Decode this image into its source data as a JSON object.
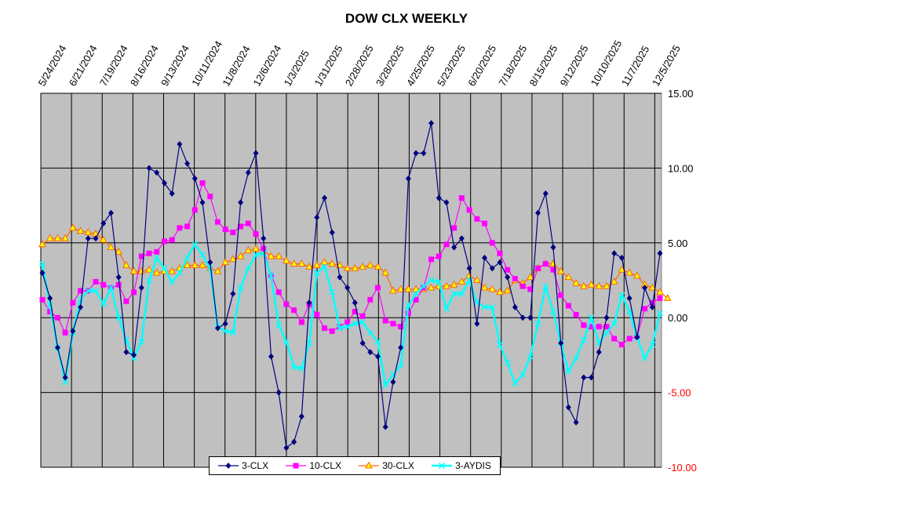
{
  "chart_data": {
    "type": "line",
    "title": "DOW CLX WEEKLY",
    "ylim": [
      -10,
      15
    ],
    "yticks": [
      "15.00",
      "10.00",
      "5.00",
      "0.00",
      "-5.00",
      "-10.00"
    ],
    "ytick_values": [
      15,
      10,
      5,
      0,
      -5,
      -10
    ],
    "xlabels": [
      "5/24/2024",
      "6/21/2024",
      "7/19/2024",
      "8/16/2024",
      "9/13/2024",
      "10/11/2024",
      "11/8/2024",
      "12/6/2024",
      "1/3/2025",
      "1/31/2025",
      "2/28/2025",
      "3/28/2025",
      "4/25/2025",
      "5/23/2025",
      "6/20/2025",
      "7/18/2025",
      "8/15/2025",
      "9/12/2025",
      "10/10/2025",
      "11/7/2025",
      "12/5/2025"
    ],
    "legend_position": "bottom",
    "series": [
      {
        "name": "3-CLX",
        "color": "#000080",
        "marker": "diamond",
        "values": [
          3.0,
          1.3,
          -2.0,
          -4.0,
          -0.9,
          0.7,
          5.3,
          5.3,
          6.3,
          7.0,
          2.7,
          -2.3,
          -2.5,
          2.0,
          10.0,
          9.7,
          9.0,
          8.3,
          11.6,
          10.3,
          9.3,
          7.7,
          3.7,
          -0.7,
          -0.4,
          1.6,
          7.7,
          9.7,
          11.0,
          5.3,
          -2.6,
          -5.0,
          -8.7,
          -8.3,
          -6.6,
          1.0,
          6.7,
          8.0,
          5.7,
          2.7,
          2.0,
          1.0,
          -1.7,
          -2.3,
          -2.6,
          -7.3,
          -4.3,
          -2.0,
          9.3,
          11.0,
          11.0,
          13.0,
          8.0,
          7.7,
          4.7,
          5.3,
          3.3,
          -0.4,
          4.0,
          3.3,
          3.7,
          2.7,
          0.7,
          0.0,
          0.0,
          7.0,
          8.3,
          4.7,
          -1.7,
          -6.0,
          -7.0,
          -4.0,
          -4.0,
          -2.3,
          0.0,
          4.3,
          4.0,
          1.3,
          -1.3,
          2.0,
          0.7,
          4.3
        ]
      },
      {
        "name": "10-CLX",
        "color": "#ff00ff",
        "marker": "square",
        "values": [
          1.2,
          0.4,
          0.0,
          -1.0,
          1.0,
          1.8,
          1.8,
          2.4,
          2.2,
          2.0,
          2.2,
          1.1,
          1.7,
          4.1,
          4.3,
          4.4,
          5.1,
          5.2,
          6.0,
          6.1,
          7.2,
          9.0,
          8.1,
          6.4,
          5.9,
          5.7,
          6.1,
          6.3,
          5.6,
          4.6,
          2.8,
          1.7,
          0.9,
          0.5,
          -0.3,
          0.9,
          0.2,
          -0.7,
          -0.9,
          -0.6,
          -0.3,
          0.4,
          0.1,
          1.2,
          2.0,
          -0.2,
          -0.4,
          -0.6,
          0.3,
          1.2,
          2.0,
          3.9,
          4.1,
          4.9,
          6.0,
          8.0,
          7.2,
          6.6,
          6.3,
          5.0,
          4.3,
          3.2,
          2.6,
          2.1,
          1.9,
          3.3,
          3.6,
          3.2,
          1.5,
          0.8,
          0.2,
          -0.5,
          -0.6,
          -0.6,
          -0.6,
          -1.4,
          -1.8,
          -1.4,
          -1.3,
          0.6,
          1.0,
          1.3
        ]
      },
      {
        "name": "30-CLX",
        "color": "#ff6600",
        "marker": "triangle",
        "values": [
          4.9,
          5.3,
          5.3,
          5.3,
          6.0,
          5.8,
          5.7,
          5.6,
          5.2,
          4.7,
          4.4,
          3.5,
          3.1,
          3.1,
          3.2,
          3.0,
          3.1,
          3.1,
          3.3,
          3.5,
          3.5,
          3.5,
          3.3,
          3.1,
          3.7,
          3.9,
          4.1,
          4.5,
          4.6,
          4.5,
          4.1,
          4.1,
          3.8,
          3.6,
          3.6,
          3.4,
          3.5,
          3.7,
          3.6,
          3.5,
          3.3,
          3.3,
          3.4,
          3.5,
          3.4,
          3.0,
          1.8,
          1.9,
          1.9,
          1.9,
          1.9,
          2.0,
          2.1,
          2.1,
          2.2,
          2.4,
          2.8,
          2.5,
          2.0,
          1.9,
          1.7,
          1.8,
          2.5,
          2.3,
          2.7,
          3.3,
          3.6,
          3.6,
          3.1,
          2.7,
          2.3,
          2.1,
          2.2,
          2.1,
          2.1,
          2.4,
          3.2,
          3.0,
          2.8,
          2.2,
          2.0,
          1.7,
          1.3
        ]
      },
      {
        "name": "3-AYDIS",
        "color": "#00ffff",
        "marker": "x",
        "values": [
          3.6,
          0.8,
          -2.0,
          -4.3,
          -1.0,
          1.2,
          1.8,
          1.8,
          0.9,
          2.0,
          0.0,
          -1.5,
          -2.7,
          -1.6,
          2.5,
          4.0,
          3.3,
          2.4,
          3.0,
          4.0,
          4.9,
          4.2,
          3.3,
          -0.6,
          -0.9,
          -1.0,
          2.0,
          3.3,
          4.2,
          4.3,
          2.8,
          -0.5,
          -1.6,
          -3.3,
          -3.4,
          -1.7,
          3.0,
          3.4,
          1.7,
          -0.7,
          -0.6,
          -0.4,
          -0.3,
          -1.0,
          -1.6,
          -4.5,
          -3.8,
          -3.2,
          0.8,
          1.6,
          2.1,
          2.5,
          2.4,
          0.6,
          1.6,
          1.6,
          2.5,
          1.0,
          0.7,
          0.7,
          -1.8,
          -3.0,
          -4.4,
          -3.8,
          -2.6,
          -0.4,
          2.1,
          0.4,
          -1.7,
          -3.6,
          -2.7,
          -1.5,
          0.0,
          -1.7,
          -1.0,
          -0.4,
          1.5,
          0.4,
          -1.3,
          -2.7,
          -1.8,
          0.3
        ]
      }
    ]
  }
}
